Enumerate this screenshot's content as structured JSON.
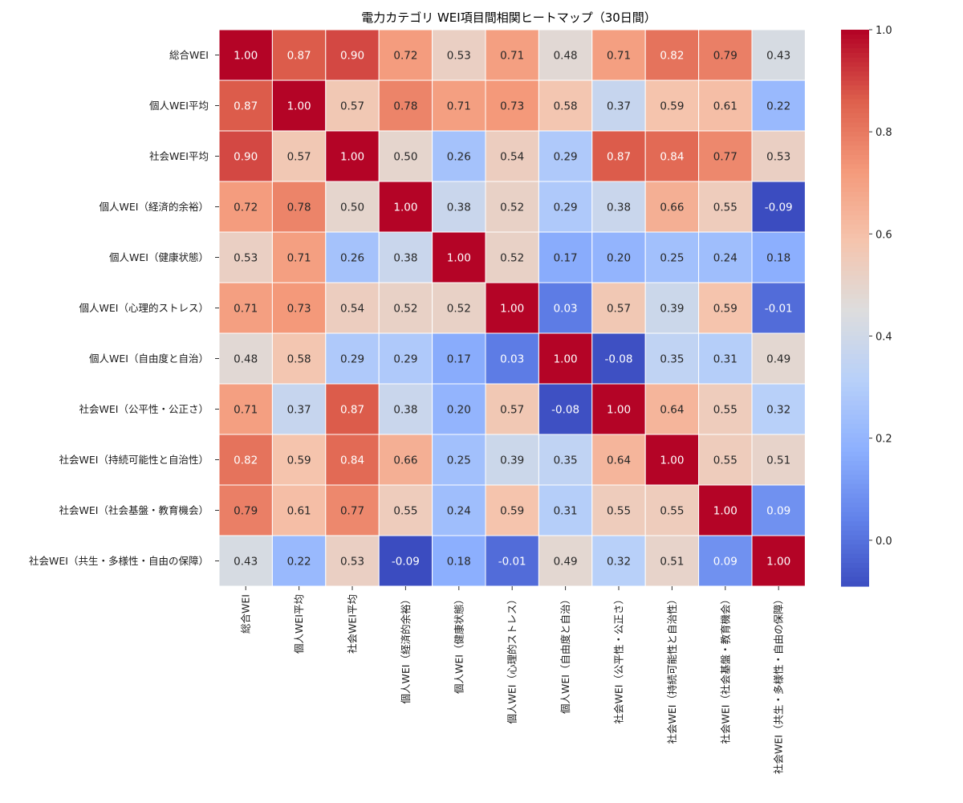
{
  "chart_data": {
    "type": "heatmap",
    "title": "電力カテゴリ WEI項目間相関ヒートマップ（30日間）",
    "labels": [
      "総合WEI",
      "個人WEI平均",
      "社会WEI平均",
      "個人WEI（経済的余裕）",
      "個人WEI（健康状態）",
      "個人WEI（心理的ストレス）",
      "個人WEI（自由度と自治）",
      "社会WEI（公平性・公正さ）",
      "社会WEI（持続可能性と自治性）",
      "社会WEI（社会基盤・教育機会）",
      "社会WEI（共生・多様性・自由の保障）"
    ],
    "matrix": [
      [
        1.0,
        0.87,
        0.9,
        0.72,
        0.53,
        0.71,
        0.48,
        0.71,
        0.82,
        0.79,
        0.43
      ],
      [
        0.87,
        1.0,
        0.57,
        0.78,
        0.71,
        0.73,
        0.58,
        0.37,
        0.59,
        0.61,
        0.22
      ],
      [
        0.9,
        0.57,
        1.0,
        0.5,
        0.26,
        0.54,
        0.29,
        0.87,
        0.84,
        0.77,
        0.53
      ],
      [
        0.72,
        0.78,
        0.5,
        1.0,
        0.38,
        0.52,
        0.29,
        0.38,
        0.66,
        0.55,
        -0.09
      ],
      [
        0.53,
        0.71,
        0.26,
        0.38,
        1.0,
        0.52,
        0.17,
        0.2,
        0.25,
        0.24,
        0.18
      ],
      [
        0.71,
        0.73,
        0.54,
        0.52,
        0.52,
        1.0,
        0.03,
        0.57,
        0.39,
        0.59,
        -0.01
      ],
      [
        0.48,
        0.58,
        0.29,
        0.29,
        0.17,
        0.03,
        1.0,
        -0.08,
        0.35,
        0.31,
        0.49
      ],
      [
        0.71,
        0.37,
        0.87,
        0.38,
        0.2,
        0.57,
        -0.08,
        1.0,
        0.64,
        0.55,
        0.32
      ],
      [
        0.82,
        0.59,
        0.84,
        0.66,
        0.25,
        0.39,
        0.35,
        0.64,
        1.0,
        0.55,
        0.51
      ],
      [
        0.79,
        0.61,
        0.77,
        0.55,
        0.24,
        0.59,
        0.31,
        0.55,
        0.55,
        1.0,
        0.09
      ],
      [
        0.43,
        0.22,
        0.53,
        -0.09,
        0.18,
        -0.01,
        0.49,
        0.32,
        0.51,
        0.09,
        1.0
      ]
    ],
    "colormap": "coolwarm",
    "vmin": -0.09,
    "vmax": 1.0,
    "colorbar_ticks": [
      "0.0",
      "0.2",
      "0.4",
      "0.6",
      "0.8",
      "1.0"
    ],
    "cell_text_light": "#ffffff",
    "cell_text_dark": "#262626",
    "grid_line_color": "#ffffff"
  }
}
